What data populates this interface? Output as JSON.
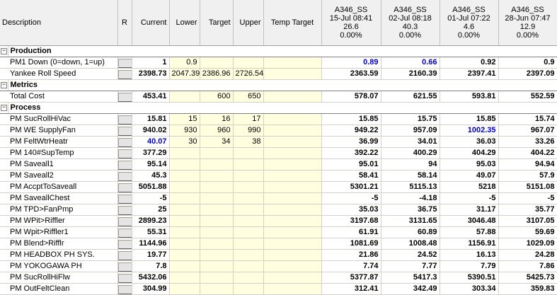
{
  "headers": {
    "description": "Description",
    "r": "R",
    "current": "Current",
    "lower": "Lower",
    "target": "Target",
    "upper": "Upper",
    "temp_target": "Temp Target",
    "samples": [
      {
        "name": "A346_SS",
        "datetime": "15-Jul 08:41",
        "value": "26.6",
        "pct": "0.00%"
      },
      {
        "name": "A346_SS",
        "datetime": "02-Jul 08:18",
        "value": "40.3",
        "pct": "0.00%"
      },
      {
        "name": "A346_SS",
        "datetime": "01-Jul 07:22",
        "value": "4.6",
        "pct": "0.00%"
      },
      {
        "name": "A346_SS",
        "datetime": "28-Jun 07:47",
        "value": "12.9",
        "pct": "0.00%"
      }
    ]
  },
  "sections": [
    {
      "title": "Production",
      "toggle": "−",
      "rows": [
        {
          "desc": "PM1 Down (0=down, 1=up)",
          "current": "1",
          "lower": "0.9",
          "target": "",
          "upper": "",
          "temp": "",
          "vals": [
            "0.89",
            "0.66",
            "0.92",
            "0.9"
          ],
          "blue": [
            true,
            true,
            false,
            false
          ],
          "current_blue": false
        },
        {
          "desc": "Yankee Roll Speed",
          "current": "2398.73",
          "lower": "2047.39",
          "target": "2386.96",
          "upper": "2726.54",
          "temp": "",
          "vals": [
            "2363.59",
            "2160.39",
            "2397.41",
            "2397.09"
          ],
          "blue": [
            false,
            false,
            false,
            false
          ],
          "current_blue": false
        }
      ]
    },
    {
      "title": "Metrics",
      "toggle": "−",
      "rows": [
        {
          "desc": "Total Cost",
          "current": "453.41",
          "lower": "",
          "target": "600",
          "upper": "650",
          "temp": "",
          "vals": [
            "578.07",
            "621.55",
            "593.81",
            "552.59"
          ],
          "blue": [
            false,
            false,
            false,
            false
          ],
          "current_blue": false
        }
      ]
    },
    {
      "title": "Process",
      "toggle": "−",
      "rows": [
        {
          "desc": "PM SucRollHiVac",
          "current": "15.81",
          "lower": "15",
          "target": "16",
          "upper": "17",
          "temp": "",
          "vals": [
            "15.85",
            "15.75",
            "15.85",
            "15.74"
          ],
          "blue": [
            false,
            false,
            false,
            false
          ],
          "current_blue": false
        },
        {
          "desc": "PM WE SupplyFan",
          "current": "940.02",
          "lower": "930",
          "target": "960",
          "upper": "990",
          "temp": "",
          "vals": [
            "949.22",
            "957.09",
            "1002.35",
            "967.07"
          ],
          "blue": [
            false,
            false,
            true,
            false
          ],
          "current_blue": false
        },
        {
          "desc": "PM FeltWtrHeatr",
          "current": "40.07",
          "lower": "30",
          "target": "34",
          "upper": "38",
          "temp": "",
          "vals": [
            "36.99",
            "34.01",
            "36.03",
            "33.26"
          ],
          "blue": [
            false,
            false,
            false,
            false
          ],
          "current_blue": true
        },
        {
          "desc": "PM 140#SupTemp",
          "current": "377.29",
          "lower": "",
          "target": "",
          "upper": "",
          "temp": "",
          "vals": [
            "392.22",
            "400.29",
            "404.29",
            "404.22"
          ],
          "blue": [
            false,
            false,
            false,
            false
          ],
          "current_blue": false
        },
        {
          "desc": "PM Saveall1",
          "current": "95.14",
          "lower": "",
          "target": "",
          "upper": "",
          "temp": "",
          "vals": [
            "95.01",
            "94",
            "95.03",
            "94.94"
          ],
          "blue": [
            false,
            false,
            false,
            false
          ],
          "current_blue": false
        },
        {
          "desc": "PM Saveall2",
          "current": "45.3",
          "lower": "",
          "target": "",
          "upper": "",
          "temp": "",
          "vals": [
            "58.41",
            "58.14",
            "49.07",
            "57.9"
          ],
          "blue": [
            false,
            false,
            false,
            false
          ],
          "current_blue": false
        },
        {
          "desc": "PM AccptToSaveall",
          "current": "5051.88",
          "lower": "",
          "target": "",
          "upper": "",
          "temp": "",
          "vals": [
            "5301.21",
            "5115.13",
            "5218",
            "5151.08"
          ],
          "blue": [
            false,
            false,
            false,
            false
          ],
          "current_blue": false
        },
        {
          "desc": "PM SaveallChest",
          "current": "-5",
          "lower": "",
          "target": "",
          "upper": "",
          "temp": "",
          "vals": [
            "-5",
            "-4.18",
            "-5",
            "-5"
          ],
          "blue": [
            false,
            false,
            false,
            false
          ],
          "current_blue": false
        },
        {
          "desc": "PM TPD>FanPmp",
          "current": "25",
          "lower": "",
          "target": "",
          "upper": "",
          "temp": "",
          "vals": [
            "35.03",
            "36.75",
            "31.17",
            "35.77"
          ],
          "blue": [
            false,
            false,
            false,
            false
          ],
          "current_blue": false
        },
        {
          "desc": "PM WPit>Riffler",
          "current": "2899.23",
          "lower": "",
          "target": "",
          "upper": "",
          "temp": "",
          "vals": [
            "3197.68",
            "3131.65",
            "3046.48",
            "3107.05"
          ],
          "blue": [
            false,
            false,
            false,
            false
          ],
          "current_blue": false
        },
        {
          "desc": "PM Wpit>Riffler1",
          "current": "55.31",
          "lower": "",
          "target": "",
          "upper": "",
          "temp": "",
          "vals": [
            "61.91",
            "60.89",
            "57.88",
            "59.69"
          ],
          "blue": [
            false,
            false,
            false,
            false
          ],
          "current_blue": false
        },
        {
          "desc": "PM Blend>Rifflr",
          "current": "1144.96",
          "lower": "",
          "target": "",
          "upper": "",
          "temp": "",
          "vals": [
            "1081.69",
            "1008.48",
            "1156.91",
            "1029.09"
          ],
          "blue": [
            false,
            false,
            false,
            false
          ],
          "current_blue": false
        },
        {
          "desc": "PM HEADBOX PH SYS.",
          "current": "19.77",
          "lower": "",
          "target": "",
          "upper": "",
          "temp": "",
          "vals": [
            "21.86",
            "24.52",
            "16.13",
            "24.28"
          ],
          "blue": [
            false,
            false,
            false,
            false
          ],
          "current_blue": false
        },
        {
          "desc": "PM YOKOGAWA PH",
          "current": "7.8",
          "lower": "",
          "target": "",
          "upper": "",
          "temp": "",
          "vals": [
            "7.74",
            "7.77",
            "7.79",
            "7.86"
          ],
          "blue": [
            false,
            false,
            false,
            false
          ],
          "current_blue": false
        },
        {
          "desc": "PM SucRollHiFlw",
          "current": "5432.06",
          "lower": "",
          "target": "",
          "upper": "",
          "temp": "",
          "vals": [
            "5377.87",
            "5417.3",
            "5390.51",
            "5425.73"
          ],
          "blue": [
            false,
            false,
            false,
            false
          ],
          "current_blue": false
        },
        {
          "desc": "PM OutFeltClean",
          "current": "304.99",
          "lower": "",
          "target": "",
          "upper": "",
          "temp": "",
          "vals": [
            "312.41",
            "342.49",
            "303.34",
            "359.83"
          ],
          "blue": [
            false,
            false,
            false,
            false
          ],
          "current_blue": false
        }
      ]
    }
  ],
  "colors": {
    "highlight_blue": "#0000cc",
    "limit_bg": "#ffffe0",
    "header_bg": "#f0f0f0"
  }
}
